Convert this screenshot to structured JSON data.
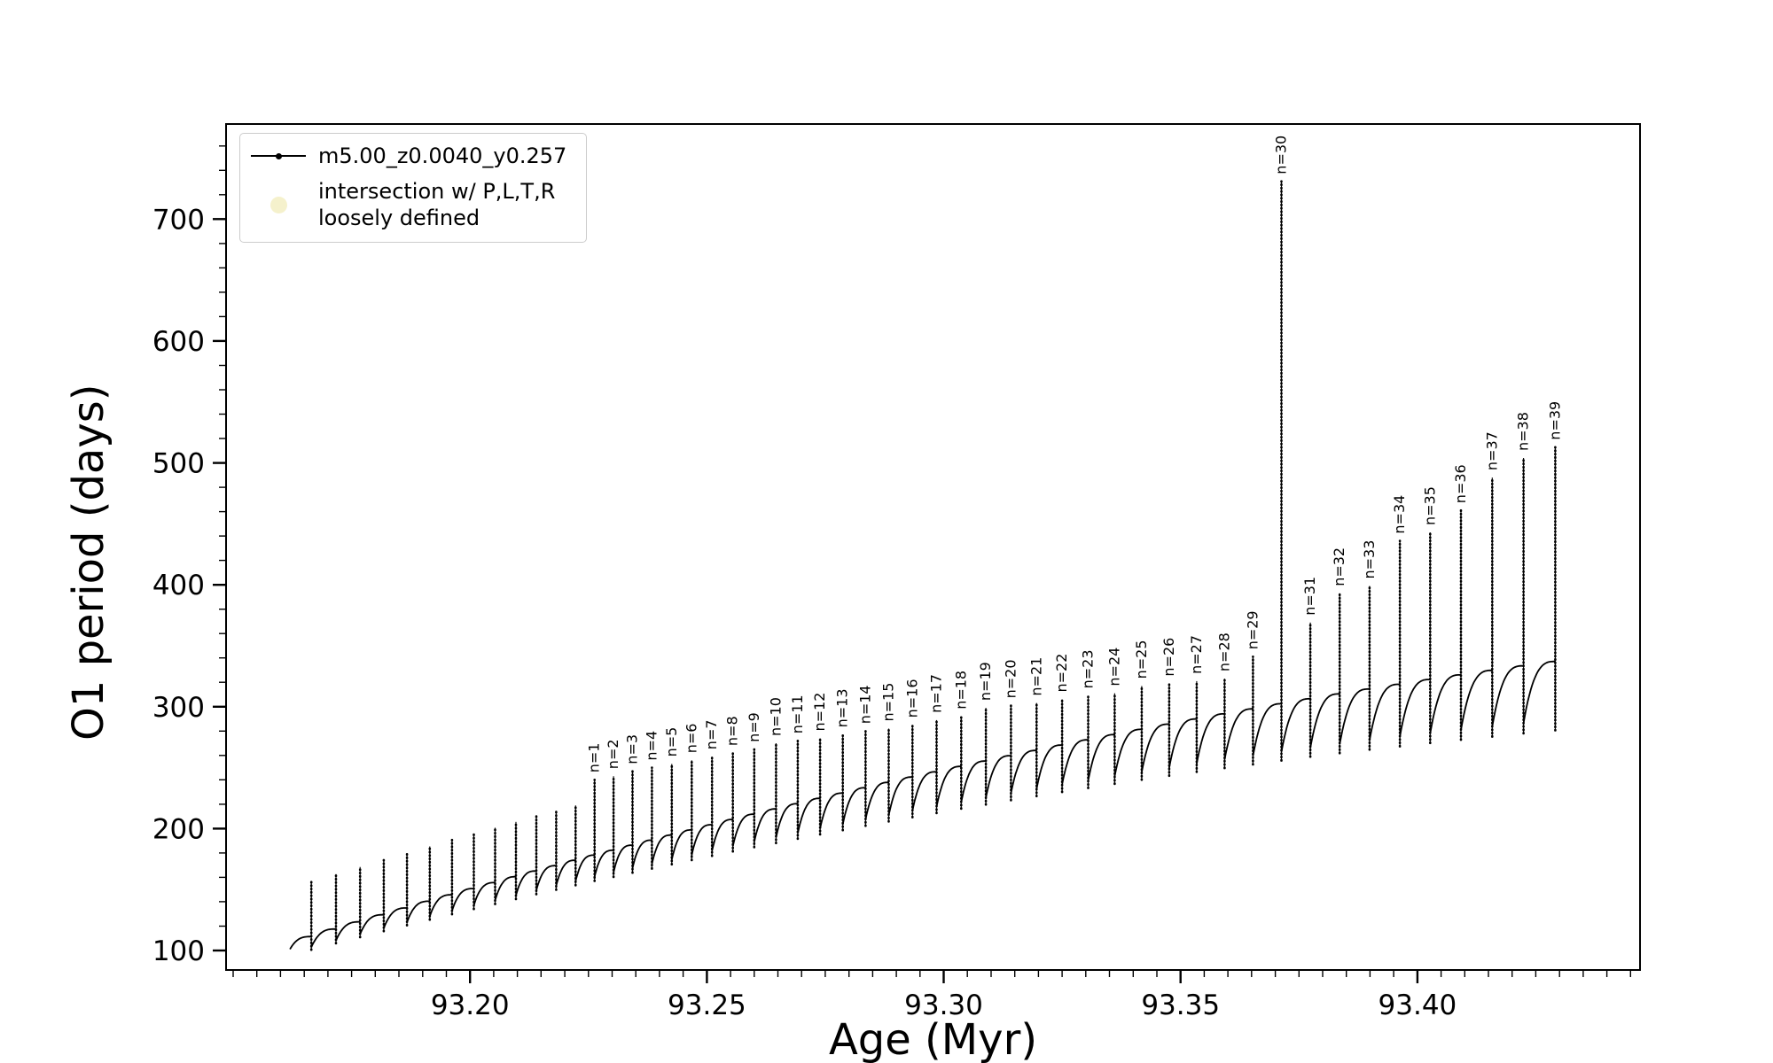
{
  "figure": {
    "background": "#ffffff",
    "axis_color": "#000000"
  },
  "chart_data": {
    "type": "line",
    "title": "",
    "xlabel": "Age (Myr)",
    "ylabel": "O1 period (days)",
    "xlim": [
      93.1485,
      93.447
    ],
    "ylim": [
      84,
      778
    ],
    "xticks": {
      "values": [
        93.2,
        93.25,
        93.3,
        93.35,
        93.4
      ],
      "labels": [
        "93.20",
        "93.25",
        "93.30",
        "93.35",
        "93.40"
      ]
    },
    "yticks": {
      "values": [
        100,
        200,
        300,
        400,
        500,
        600,
        700
      ],
      "labels": [
        "100",
        "200",
        "300",
        "400",
        "500",
        "600",
        "700"
      ]
    },
    "x_minor_step": 0.005,
    "y_minor_step": 20,
    "grid": false,
    "series_color": "#000000",
    "annotation_color": "#000000",
    "legend": {
      "position": "upper-left",
      "entries": [
        {
          "label": "m5.00_z0.0040_y0.257",
          "marker": "line-dot",
          "color": "#000000"
        },
        {
          "lines": [
            "intersection w/ P,L,T,R",
            "loosely defined"
          ],
          "marker": "circle",
          "color": "#eee8aa"
        }
      ]
    },
    "series_start": {
      "x": 93.162,
      "y": 101
    },
    "pulse_fields": [
      "x",
      "arc_high",
      "arc_low",
      "spike_bottom",
      "spike_top",
      "label"
    ],
    "pulses": [
      [
        93.1665,
        111.4,
        102.7,
        100.6,
        156.4,
        null
      ],
      [
        93.1717,
        117.6,
        108.1,
        105.9,
        162.6,
        null
      ],
      [
        93.1768,
        123.5,
        113.3,
        110.9,
        168.5,
        null
      ],
      [
        93.1818,
        129.3,
        118.3,
        115.8,
        174.3,
        null
      ],
      [
        93.1867,
        134.9,
        123.2,
        120.6,
        179.9,
        null
      ],
      [
        93.1915,
        140.4,
        128.0,
        125.3,
        185.4,
        null
      ],
      [
        93.1962,
        145.7,
        132.6,
        129.7,
        190.7,
        null
      ],
      [
        93.2008,
        150.8,
        137.0,
        134.0,
        195.8,
        null
      ],
      [
        93.2053,
        155.7,
        141.2,
        138.1,
        200.7,
        null
      ],
      [
        93.2097,
        160.5,
        145.3,
        142.1,
        205.5,
        null
      ],
      [
        93.214,
        165.2,
        149.4,
        146.1,
        210.2,
        null
      ],
      [
        93.2182,
        169.6,
        153.2,
        149.8,
        214.6,
        null
      ],
      [
        93.2223,
        174.0,
        157.0,
        153.5,
        219.0,
        null
      ],
      [
        93.2263,
        178.2,
        160.6,
        157.0,
        240,
        "n=1"
      ],
      [
        93.2303,
        182.2,
        164.0,
        160.3,
        243,
        "n=2"
      ],
      [
        93.2343,
        186.4,
        167.6,
        163.8,
        247,
        "n=3"
      ],
      [
        93.2384,
        190.5,
        171.0,
        167.1,
        250,
        "n=4"
      ],
      [
        93.2426,
        194.7,
        174.6,
        170.6,
        253,
        "n=5"
      ],
      [
        93.2468,
        198.9,
        178.2,
        174.1,
        256,
        "n=6"
      ],
      [
        93.2511,
        203.2,
        181.8,
        177.6,
        259,
        "n=7"
      ],
      [
        93.2555,
        207.5,
        185.5,
        181.2,
        262,
        "n=8"
      ],
      [
        93.26,
        211.8,
        189.1,
        184.7,
        265,
        "n=9"
      ],
      [
        93.2646,
        216.1,
        192.7,
        188.1,
        270,
        "n=10"
      ],
      [
        93.2692,
        220.4,
        196.3,
        191.6,
        272,
        "n=11"
      ],
      [
        93.2739,
        224.8,
        200.0,
        195.2,
        274,
        "n=12"
      ],
      [
        93.2787,
        229.1,
        203.6,
        198.7,
        277,
        "n=13"
      ],
      [
        93.2835,
        233.5,
        207.3,
        202.2,
        280,
        "n=14"
      ],
      [
        93.2884,
        237.9,
        211.0,
        205.8,
        282,
        "n=15"
      ],
      [
        93.2934,
        242.3,
        214.6,
        209.3,
        285,
        "n=16"
      ],
      [
        93.2985,
        246.6,
        218.1,
        212.7,
        289,
        "n=17"
      ],
      [
        93.3037,
        251.0,
        221.8,
        216.3,
        292,
        "n=18"
      ],
      [
        93.3089,
        255.4,
        225.4,
        219.7,
        299,
        "n=19"
      ],
      [
        93.3142,
        259.8,
        229.0,
        223.2,
        301,
        "n=20"
      ],
      [
        93.3196,
        264.1,
        232.5,
        226.6,
        303,
        "n=21"
      ],
      [
        93.325,
        268.5,
        236.1,
        230.0,
        306,
        "n=22"
      ],
      [
        93.3305,
        272.8,
        239.5,
        233.3,
        309,
        "n=23"
      ],
      [
        93.3361,
        277.1,
        243.0,
        236.7,
        311,
        "n=24"
      ],
      [
        93.3418,
        281.4,
        246.4,
        240.0,
        317,
        "n=25"
      ],
      [
        93.3476,
        285.7,
        249.9,
        243.3,
        319,
        "n=26"
      ],
      [
        93.3534,
        289.9,
        253.2,
        246.5,
        321,
        "n=27"
      ],
      [
        93.3593,
        294.1,
        256.5,
        249.6,
        323,
        "n=28"
      ],
      [
        93.3653,
        298.2,
        259.7,
        252.6,
        341,
        "n=29"
      ],
      [
        93.3713,
        302.4,
        263.0,
        255.8,
        731,
        "n=30"
      ],
      [
        93.3774,
        306.5,
        266.2,
        258.9,
        369,
        "n=31"
      ],
      [
        93.3836,
        310.5,
        269.3,
        261.8,
        393,
        "n=32"
      ],
      [
        93.3899,
        314.5,
        272.3,
        264.7,
        399,
        "n=33"
      ],
      [
        93.3963,
        318.4,
        275.3,
        267.4,
        436,
        "n=34"
      ],
      [
        93.4027,
        322.3,
        278.2,
        270.2,
        443,
        "n=35"
      ],
      [
        93.4092,
        326.1,
        281.0,
        272.9,
        461,
        "n=36"
      ],
      [
        93.4158,
        329.8,
        283.7,
        275.4,
        488,
        "n=37"
      ],
      [
        93.4224,
        333.5,
        286.5,
        278.1,
        504,
        "n=38"
      ],
      [
        93.4291,
        337.1,
        289.1,
        280.6,
        513,
        "n=39"
      ]
    ]
  }
}
